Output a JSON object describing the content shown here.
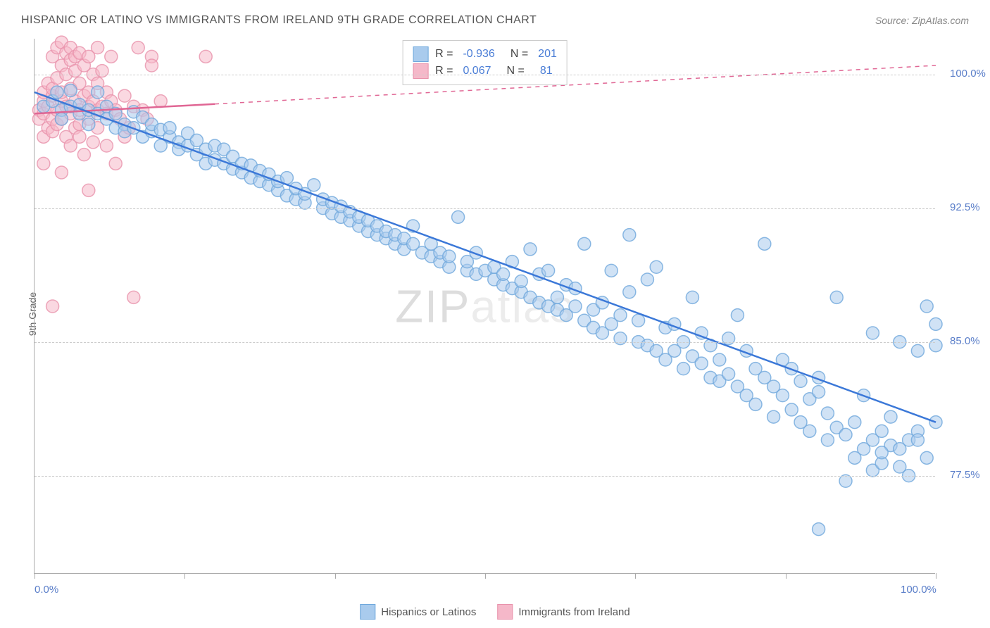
{
  "title": "HISPANIC OR LATINO VS IMMIGRANTS FROM IRELAND 9TH GRADE CORRELATION CHART",
  "source": "Source: ZipAtlas.com",
  "watermark_a": "ZIP",
  "watermark_b": "atlas",
  "y_axis_label": "9th Grade",
  "chart": {
    "type": "scatter",
    "xlim": [
      0,
      100
    ],
    "ylim": [
      72,
      102
    ],
    "x_ticks": [
      0,
      16.67,
      33.33,
      50,
      66.67,
      83.33,
      100
    ],
    "x_tick_labels": {
      "0": "0.0%",
      "100": "100.0%"
    },
    "y_gridlines": [
      77.5,
      85.0,
      92.5,
      100.0
    ],
    "y_tick_labels": {
      "77.5": "77.5%",
      "85.0": "85.0%",
      "92.5": "92.5%",
      "100.0": "100.0%"
    },
    "background_color": "#ffffff",
    "grid_color": "#cccccc",
    "axis_color": "#aaaaaa",
    "marker_radius": 9,
    "marker_stroke_width": 1.5,
    "trend_line_width": 2.5,
    "series": [
      {
        "name": "Hispanics or Latinos",
        "fill": "#a9cbed",
        "stroke": "#6fa8dc",
        "opacity": 0.55,
        "R": "-0.936",
        "N": "201",
        "trend": {
          "x1": 0,
          "y1": 99.0,
          "x2": 100,
          "y2": 80.5,
          "dash": "none",
          "color": "#3b78d8"
        },
        "points": [
          [
            1,
            98.2
          ],
          [
            2,
            98.5
          ],
          [
            2.5,
            99.0
          ],
          [
            3,
            98.0
          ],
          [
            3,
            97.5
          ],
          [
            4,
            98.2
          ],
          [
            4,
            99.1
          ],
          [
            5,
            98.3
          ],
          [
            5,
            97.8
          ],
          [
            6,
            98.0
          ],
          [
            6,
            97.2
          ],
          [
            7,
            97.8
          ],
          [
            7,
            99.0
          ],
          [
            8,
            97.5
          ],
          [
            8,
            98.2
          ],
          [
            9,
            97.0
          ],
          [
            9,
            97.8
          ],
          [
            10,
            97.2
          ],
          [
            10,
            96.8
          ],
          [
            11,
            97.0
          ],
          [
            11,
            97.9
          ],
          [
            12,
            96.5
          ],
          [
            12,
            97.6
          ],
          [
            13,
            96.8
          ],
          [
            13,
            97.2
          ],
          [
            14,
            96.0
          ],
          [
            14,
            96.9
          ],
          [
            15,
            96.5
          ],
          [
            15,
            97.0
          ],
          [
            16,
            96.2
          ],
          [
            16,
            95.8
          ],
          [
            17,
            96.0
          ],
          [
            17,
            96.7
          ],
          [
            18,
            95.5
          ],
          [
            18,
            96.3
          ],
          [
            19,
            95.8
          ],
          [
            19,
            95.0
          ],
          [
            20,
            95.2
          ],
          [
            20,
            96.0
          ],
          [
            21,
            95.0
          ],
          [
            21,
            95.8
          ],
          [
            22,
            94.7
          ],
          [
            22,
            95.4
          ],
          [
            23,
            94.5
          ],
          [
            23,
            95.0
          ],
          [
            24,
            94.2
          ],
          [
            24,
            94.9
          ],
          [
            25,
            94.0
          ],
          [
            25,
            94.6
          ],
          [
            26,
            93.8
          ],
          [
            26,
            94.4
          ],
          [
            27,
            93.5
          ],
          [
            27,
            94.0
          ],
          [
            28,
            93.2
          ],
          [
            28,
            94.2
          ],
          [
            29,
            93.0
          ],
          [
            29,
            93.6
          ],
          [
            30,
            92.8
          ],
          [
            30,
            93.3
          ],
          [
            31,
            93.8
          ],
          [
            32,
            92.5
          ],
          [
            32,
            93.0
          ],
          [
            33,
            92.2
          ],
          [
            33,
            92.8
          ],
          [
            34,
            92.0
          ],
          [
            34,
            92.6
          ],
          [
            35,
            91.8
          ],
          [
            35,
            92.3
          ],
          [
            36,
            91.5
          ],
          [
            36,
            92.0
          ],
          [
            37,
            91.2
          ],
          [
            37,
            91.8
          ],
          [
            38,
            91.0
          ],
          [
            38,
            91.5
          ],
          [
            39,
            90.8
          ],
          [
            39,
            91.2
          ],
          [
            40,
            90.5
          ],
          [
            40,
            91.0
          ],
          [
            41,
            90.2
          ],
          [
            41,
            90.8
          ],
          [
            42,
            90.5
          ],
          [
            42,
            91.5
          ],
          [
            43,
            90.0
          ],
          [
            44,
            89.8
          ],
          [
            44,
            90.5
          ],
          [
            45,
            89.5
          ],
          [
            45,
            90.0
          ],
          [
            46,
            89.2
          ],
          [
            46,
            89.8
          ],
          [
            47,
            92.0
          ],
          [
            48,
            89.0
          ],
          [
            48,
            89.5
          ],
          [
            49,
            88.8
          ],
          [
            49,
            90.0
          ],
          [
            50,
            89.0
          ],
          [
            51,
            88.5
          ],
          [
            51,
            89.2
          ],
          [
            52,
            88.2
          ],
          [
            52,
            88.8
          ],
          [
            53,
            88.0
          ],
          [
            53,
            89.5
          ],
          [
            54,
            87.8
          ],
          [
            54,
            88.4
          ],
          [
            55,
            87.5
          ],
          [
            55,
            90.2
          ],
          [
            56,
            87.2
          ],
          [
            56,
            88.8
          ],
          [
            57,
            87.0
          ],
          [
            57,
            89.0
          ],
          [
            58,
            86.8
          ],
          [
            58,
            87.5
          ],
          [
            59,
            88.2
          ],
          [
            59,
            86.5
          ],
          [
            60,
            87.0
          ],
          [
            60,
            88.0
          ],
          [
            61,
            86.2
          ],
          [
            61,
            90.5
          ],
          [
            62,
            86.8
          ],
          [
            62,
            85.8
          ],
          [
            63,
            87.2
          ],
          [
            63,
            85.5
          ],
          [
            64,
            86.0
          ],
          [
            64,
            89.0
          ],
          [
            65,
            85.2
          ],
          [
            65,
            86.5
          ],
          [
            66,
            87.8
          ],
          [
            66,
            91.0
          ],
          [
            67,
            85.0
          ],
          [
            67,
            86.2
          ],
          [
            68,
            84.8
          ],
          [
            68,
            88.5
          ],
          [
            69,
            84.5
          ],
          [
            69,
            89.2
          ],
          [
            70,
            85.8
          ],
          [
            70,
            84.0
          ],
          [
            71,
            84.5
          ],
          [
            71,
            86.0
          ],
          [
            72,
            85.0
          ],
          [
            72,
            83.5
          ],
          [
            73,
            84.2
          ],
          [
            73,
            87.5
          ],
          [
            74,
            83.8
          ],
          [
            74,
            85.5
          ],
          [
            75,
            83.0
          ],
          [
            75,
            84.8
          ],
          [
            76,
            84.0
          ],
          [
            76,
            82.8
          ],
          [
            77,
            85.2
          ],
          [
            77,
            83.2
          ],
          [
            78,
            82.5
          ],
          [
            78,
            86.5
          ],
          [
            79,
            82.0
          ],
          [
            79,
            84.5
          ],
          [
            80,
            83.5
          ],
          [
            80,
            81.5
          ],
          [
            81,
            83.0
          ],
          [
            81,
            90.5
          ],
          [
            82,
            82.5
          ],
          [
            82,
            80.8
          ],
          [
            83,
            82.0
          ],
          [
            83,
            84.0
          ],
          [
            84,
            81.2
          ],
          [
            84,
            83.5
          ],
          [
            85,
            80.5
          ],
          [
            85,
            82.8
          ],
          [
            86,
            81.8
          ],
          [
            86,
            80.0
          ],
          [
            87,
            82.2
          ],
          [
            87,
            83.0
          ],
          [
            88,
            79.5
          ],
          [
            88,
            81.0
          ],
          [
            89,
            87.5
          ],
          [
            89,
            80.2
          ],
          [
            90,
            77.2
          ],
          [
            90,
            79.8
          ],
          [
            91,
            80.5
          ],
          [
            91,
            78.5
          ],
          [
            92,
            79.0
          ],
          [
            92,
            82.0
          ],
          [
            93,
            79.5
          ],
          [
            93,
            77.8
          ],
          [
            94,
            80.0
          ],
          [
            94,
            78.2
          ],
          [
            95,
            79.2
          ],
          [
            95,
            80.8
          ],
          [
            96,
            78.0
          ],
          [
            96,
            85.0
          ],
          [
            97,
            79.5
          ],
          [
            97,
            77.5
          ],
          [
            98,
            80.0
          ],
          [
            98,
            84.5
          ],
          [
            99,
            78.5
          ],
          [
            99,
            87.0
          ],
          [
            100,
            80.5
          ],
          [
            100,
            86.0
          ],
          [
            100,
            84.8
          ],
          [
            87,
            74.5
          ],
          [
            94,
            78.8
          ],
          [
            96,
            79.0
          ],
          [
            98,
            79.5
          ],
          [
            93,
            85.5
          ]
        ]
      },
      {
        "name": "Immigrants from Ireland",
        "fill": "#f5b8c9",
        "stroke": "#e892ab",
        "opacity": 0.55,
        "R": "0.067",
        "N": "81",
        "trend": {
          "x1": 0,
          "y1": 97.8,
          "x2": 100,
          "y2": 100.5,
          "dash_from_x": 20,
          "color": "#e06694"
        },
        "points": [
          [
            0.5,
            98.0
          ],
          [
            0.5,
            97.5
          ],
          [
            1,
            98.5
          ],
          [
            1,
            99.0
          ],
          [
            1,
            97.8
          ],
          [
            1,
            96.5
          ],
          [
            1.5,
            98.2
          ],
          [
            1.5,
            99.5
          ],
          [
            1.5,
            97.0
          ],
          [
            2,
            98.8
          ],
          [
            2,
            97.5
          ],
          [
            2,
            99.2
          ],
          [
            2,
            96.8
          ],
          [
            2,
            101.0
          ],
          [
            2.5,
            98.0
          ],
          [
            2.5,
            99.8
          ],
          [
            2.5,
            97.2
          ],
          [
            2.5,
            101.5
          ],
          [
            3,
            98.5
          ],
          [
            3,
            97.5
          ],
          [
            3,
            99.0
          ],
          [
            3,
            100.5
          ],
          [
            3,
            101.8
          ],
          [
            3.5,
            98.2
          ],
          [
            3.5,
            96.5
          ],
          [
            3.5,
            100.0
          ],
          [
            3.5,
            101.2
          ],
          [
            4,
            97.8
          ],
          [
            4,
            99.2
          ],
          [
            4,
            100.8
          ],
          [
            4,
            96.0
          ],
          [
            4,
            101.5
          ],
          [
            4.5,
            98.5
          ],
          [
            4.5,
            97.0
          ],
          [
            4.5,
            100.2
          ],
          [
            4.5,
            101.0
          ],
          [
            5,
            98.0
          ],
          [
            5,
            99.5
          ],
          [
            5,
            96.5
          ],
          [
            5,
            101.2
          ],
          [
            5,
            97.2
          ],
          [
            5.5,
            98.8
          ],
          [
            5.5,
            100.5
          ],
          [
            5.5,
            95.5
          ],
          [
            6,
            98.2
          ],
          [
            6,
            97.5
          ],
          [
            6,
            101.0
          ],
          [
            6,
            99.0
          ],
          [
            6.5,
            98.5
          ],
          [
            6.5,
            96.2
          ],
          [
            6.5,
            100.0
          ],
          [
            7,
            98.0
          ],
          [
            7,
            99.5
          ],
          [
            7,
            97.0
          ],
          [
            7,
            101.5
          ],
          [
            7.5,
            98.2
          ],
          [
            7.5,
            100.2
          ],
          [
            8,
            97.8
          ],
          [
            8,
            99.0
          ],
          [
            8,
            96.0
          ],
          [
            8.5,
            98.5
          ],
          [
            8.5,
            101.0
          ],
          [
            9,
            98.0
          ],
          [
            9,
            95.0
          ],
          [
            9.5,
            97.5
          ],
          [
            10,
            98.8
          ],
          [
            10,
            96.5
          ],
          [
            10.5,
            97.0
          ],
          [
            11,
            98.2
          ],
          [
            11.5,
            101.5
          ],
          [
            12,
            98.0
          ],
          [
            12.5,
            97.5
          ],
          [
            13,
            101.0
          ],
          [
            14,
            98.5
          ],
          [
            2,
            87.0
          ],
          [
            3,
            94.5
          ],
          [
            6,
            93.5
          ],
          [
            11,
            87.5
          ],
          [
            19,
            101.0
          ],
          [
            13,
            100.5
          ],
          [
            1,
            95.0
          ]
        ]
      }
    ]
  },
  "footer_legend": [
    {
      "label": "Hispanics or Latinos",
      "fill": "#a9cbed",
      "stroke": "#6fa8dc"
    },
    {
      "label": "Immigrants from Ireland",
      "fill": "#f5b8c9",
      "stroke": "#e892ab"
    }
  ]
}
